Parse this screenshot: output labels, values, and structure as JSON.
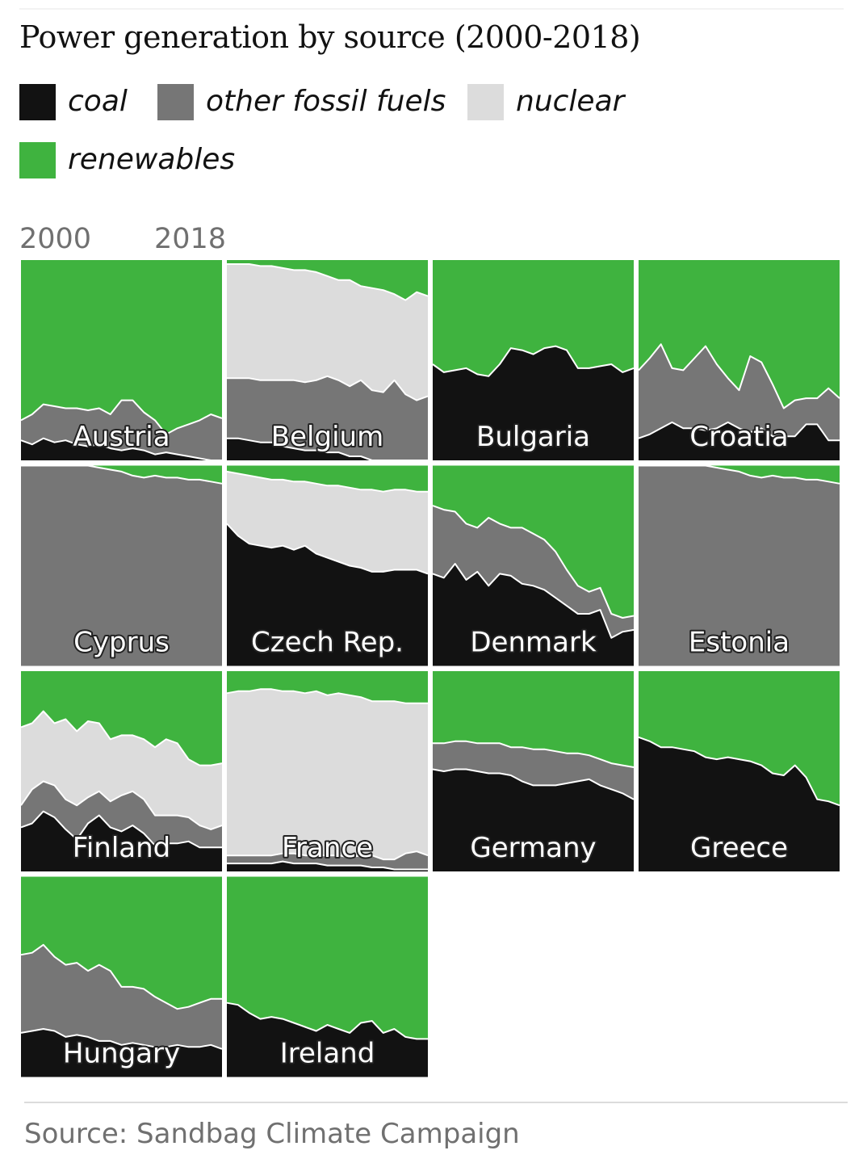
{
  "title": "Power generation by source (2000-2018)",
  "legend": [
    {
      "label": "coal",
      "color": "#121212"
    },
    {
      "label": "other fossil fuels",
      "color": "#767676"
    },
    {
      "label": "nuclear",
      "color": "#dcdcdc"
    },
    {
      "label": "renewables",
      "color": "#3fb33f"
    }
  ],
  "axis": {
    "start": "2000",
    "end": "2018"
  },
  "source": "Source: Sandbag Climate Campaign",
  "chart_data": {
    "type": "area",
    "stacking": "100% share of generation",
    "x": [
      2000,
      2001,
      2002,
      2003,
      2004,
      2005,
      2006,
      2007,
      2008,
      2009,
      2010,
      2011,
      2012,
      2013,
      2014,
      2015,
      2016,
      2017,
      2018
    ],
    "series_names": [
      "coal",
      "other fossil fuels",
      "nuclear",
      "renewables"
    ],
    "panels": [
      {
        "country": "Austria",
        "coal": [
          10,
          8,
          11,
          9,
          10,
          8,
          7,
          8,
          6,
          5,
          6,
          5,
          3,
          4,
          3,
          2,
          1,
          0,
          0
        ],
        "nuclear": [
          0,
          0,
          0,
          0,
          0,
          0,
          0,
          0,
          0,
          0,
          0,
          0,
          0,
          0,
          0,
          0,
          0,
          0,
          0
        ],
        "fossil": [
          20,
          23,
          28,
          27,
          26,
          26,
          25,
          26,
          23,
          30,
          30,
          24,
          20,
          13,
          16,
          18,
          20,
          23,
          21
        ]
      },
      {
        "country": "Belgium",
        "coal": [
          11,
          11,
          10,
          9,
          9,
          7,
          6,
          5,
          5,
          4,
          4,
          2,
          2,
          0,
          0,
          0,
          0,
          0,
          0
        ],
        "nuclear": [
          98,
          98,
          98,
          97,
          97,
          96,
          95,
          95,
          94,
          92,
          90,
          90,
          87,
          86,
          85,
          83,
          80,
          84,
          82
        ],
        "fossil": [
          41,
          41,
          41,
          40,
          40,
          40,
          40,
          39,
          40,
          42,
          40,
          37,
          40,
          35,
          34,
          40,
          33,
          30,
          32
        ]
      },
      {
        "country": "Bulgaria",
        "coal": [
          48,
          44,
          45,
          46,
          43,
          42,
          48,
          56,
          55,
          53,
          56,
          57,
          55,
          46,
          46,
          47,
          48,
          44,
          46
        ]
      },
      {
        "country": "Croatia",
        "coal": [
          11,
          13,
          16,
          19,
          16,
          16,
          15,
          16,
          19,
          16,
          14,
          16,
          12,
          12,
          12,
          18,
          18,
          10,
          10
        ],
        "fossil": [
          45,
          51,
          58,
          46,
          45,
          51,
          57,
          48,
          41,
          35,
          52,
          49,
          38,
          26,
          30,
          31,
          31,
          36,
          31
        ]
      },
      {
        "country": "Cyprus",
        "coal": [
          0,
          0,
          0,
          0,
          0,
          0,
          0,
          0,
          0,
          0,
          0,
          0,
          0,
          0,
          0,
          0,
          0,
          0,
          0
        ],
        "nuclear": [
          0,
          0,
          0,
          0,
          0,
          0,
          0,
          0,
          0,
          0,
          0,
          0,
          0,
          0,
          0,
          0,
          0,
          0,
          0
        ],
        "fossil": [
          100,
          100,
          100,
          100,
          100,
          100,
          100,
          99,
          98,
          97,
          95,
          94,
          95,
          94,
          94,
          93,
          93,
          92,
          91
        ]
      },
      {
        "country": "Czech Rep.",
        "coal": [
          71,
          65,
          61,
          60,
          59,
          60,
          58,
          60,
          56,
          54,
          52,
          50,
          49,
          47,
          47,
          48,
          48,
          48,
          46
        ],
        "nuclear": [
          97,
          96,
          95,
          94,
          93,
          93,
          92,
          92,
          91,
          90,
          90,
          89,
          88,
          88,
          87,
          88,
          88,
          87,
          87
        ]
      },
      {
        "country": "Denmark",
        "coal": [
          46,
          44,
          51,
          43,
          47,
          40,
          46,
          45,
          41,
          40,
          38,
          34,
          30,
          26,
          26,
          28,
          14,
          17,
          18
        ],
        "fossil": [
          80,
          78,
          77,
          71,
          69,
          74,
          71,
          69,
          69,
          66,
          63,
          57,
          48,
          40,
          37,
          39,
          26,
          24,
          25
        ]
      },
      {
        "country": "Estonia",
        "coal": [
          0,
          0,
          0,
          0,
          0,
          0,
          0,
          0,
          0,
          0,
          0,
          0,
          0,
          0,
          0,
          0,
          0,
          0,
          0
        ],
        "nuclear": [
          0,
          0,
          0,
          0,
          0,
          0,
          0,
          0,
          0,
          0,
          0,
          0,
          0,
          0,
          0,
          0,
          0,
          0,
          0
        ],
        "fossil": [
          100,
          100,
          100,
          100,
          100,
          100,
          100,
          99,
          98,
          97,
          95,
          94,
          95,
          94,
          94,
          93,
          93,
          92,
          91
        ]
      },
      {
        "country": "Finland",
        "coal": [
          22,
          24,
          30,
          27,
          21,
          16,
          24,
          28,
          22,
          20,
          23,
          19,
          13,
          14,
          14,
          15,
          12,
          12,
          12
        ],
        "fossil": [
          33,
          41,
          45,
          43,
          36,
          33,
          37,
          40,
          35,
          38,
          40,
          36,
          28,
          28,
          28,
          27,
          23,
          21,
          23
        ],
        "nuclear": [
          72,
          74,
          80,
          74,
          76,
          70,
          75,
          74,
          66,
          68,
          68,
          66,
          62,
          66,
          64,
          56,
          53,
          53,
          54
        ]
      },
      {
        "country": "France",
        "coal": [
          4,
          4,
          4,
          4,
          4,
          5,
          4,
          4,
          4,
          3,
          3,
          3,
          3,
          2,
          2,
          1,
          1,
          1,
          1
        ],
        "fossil": [
          8,
          8,
          8,
          8,
          8,
          9,
          9,
          8,
          8,
          8,
          8,
          7,
          8,
          8,
          6,
          6,
          9,
          10,
          8
        ],
        "nuclear": [
          89,
          90,
          90,
          91,
          91,
          90,
          90,
          89,
          90,
          88,
          89,
          88,
          87,
          85,
          85,
          85,
          84,
          84,
          84
        ]
      },
      {
        "country": "Germany",
        "coal": [
          51,
          50,
          51,
          51,
          50,
          49,
          49,
          48,
          45,
          43,
          43,
          43,
          44,
          45,
          46,
          43,
          41,
          39,
          36
        ],
        "fossil": [
          64,
          64,
          65,
          65,
          64,
          64,
          64,
          62,
          62,
          61,
          61,
          60,
          59,
          59,
          58,
          56,
          54,
          53,
          52
        ]
      },
      {
        "country": "Greece",
        "coal": [
          67,
          65,
          62,
          62,
          61,
          60,
          57,
          56,
          57,
          56,
          55,
          53,
          49,
          48,
          53,
          47,
          36,
          35,
          33
        ]
      },
      {
        "country": "Hungary",
        "coal": [
          22,
          23,
          24,
          23,
          20,
          21,
          20,
          18,
          18,
          16,
          17,
          16,
          15,
          15,
          16,
          15,
          15,
          16,
          14
        ],
        "fossil": [
          61,
          62,
          66,
          60,
          56,
          57,
          53,
          56,
          53,
          45,
          45,
          44,
          40,
          37,
          34,
          35,
          37,
          39,
          39
        ]
      },
      {
        "country": "Ireland",
        "coal": [
          37,
          36,
          32,
          29,
          30,
          29,
          27,
          25,
          23,
          26,
          24,
          22,
          27,
          28,
          22,
          24,
          20,
          19,
          19
        ],
        "nuclear": [
          0,
          0,
          0,
          0,
          0,
          0,
          0,
          0,
          0,
          0,
          0,
          0,
          0,
          0,
          0,
          0,
          0,
          0,
          0
        ]
      }
    ]
  }
}
